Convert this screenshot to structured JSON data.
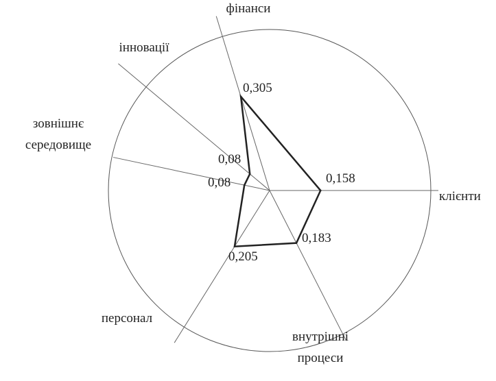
{
  "chart_data": {
    "type": "radar",
    "categories": [
      "фінанси",
      "клієнти",
      "внутрішні процеси",
      "персонал",
      "зовнішнє середовище",
      "інновації"
    ],
    "values": [
      0.305,
      0.158,
      0.183,
      0.205,
      0.08,
      0.08
    ],
    "value_labels": [
      "0,305",
      "0,158",
      "0,183",
      "0,205",
      "0,08",
      "0,08"
    ],
    "rlim": [
      0,
      0.5
    ],
    "color": "#222222"
  }
}
